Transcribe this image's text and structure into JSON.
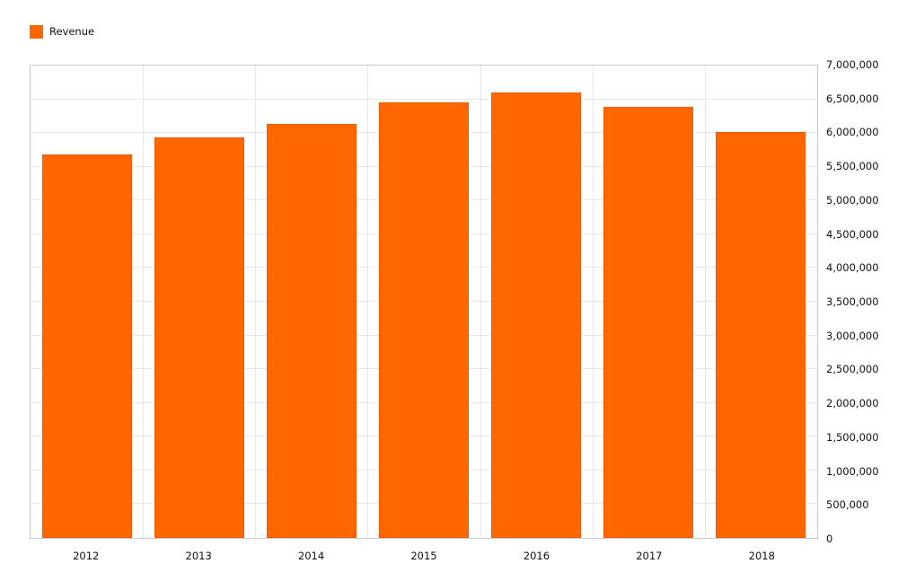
{
  "legend": {
    "label": "Revenue"
  },
  "chart_data": {
    "type": "bar",
    "title": "",
    "categories": [
      "2012",
      "2013",
      "2014",
      "2015",
      "2016",
      "2017",
      "2018"
    ],
    "series": [
      {
        "name": "Revenue",
        "values": [
          5680000,
          5940000,
          6140000,
          6450000,
          6600000,
          6390000,
          6020000
        ]
      }
    ],
    "xlabel": "",
    "ylabel": "",
    "ylim": [
      0,
      7000000
    ],
    "ytick_interval": 500000,
    "y_axis_side": "right",
    "grid": "both",
    "legend_position": "top-left",
    "bar_color": "#ff6600",
    "bar_border_color": "#f05a00",
    "gridline_color": "#e7e7e7",
    "plot_border_color": "#c9c9c9",
    "text_color": "#111111",
    "background_color": "#ffffff"
  }
}
